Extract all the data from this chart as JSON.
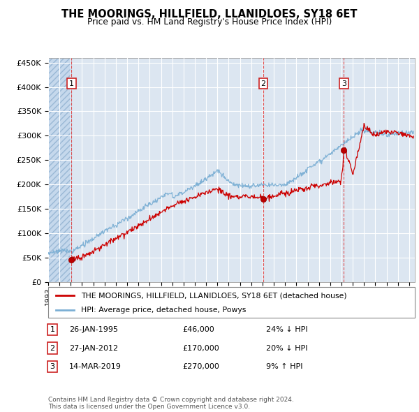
{
  "title": "THE MOORINGS, HILLFIELD, LLANIDLOES, SY18 6ET",
  "subtitle": "Price paid vs. HM Land Registry's House Price Index (HPI)",
  "ylim": [
    0,
    460000
  ],
  "yticks": [
    0,
    50000,
    100000,
    150000,
    200000,
    250000,
    300000,
    350000,
    400000,
    450000
  ],
  "ytick_labels": [
    "£0",
    "£50K",
    "£100K",
    "£150K",
    "£200K",
    "£250K",
    "£300K",
    "£350K",
    "£400K",
    "£450K"
  ],
  "xlim_start": 1993.0,
  "xlim_end": 2025.5,
  "plot_bg_color": "#dce6f1",
  "grid_color": "#ffffff",
  "sale_dates": [
    1995.07,
    2012.07,
    2019.21
  ],
  "sale_prices": [
    46000,
    170000,
    270000
  ],
  "sale_labels": [
    "1",
    "2",
    "3"
  ],
  "red_line_color": "#cc0000",
  "blue_line_color": "#7bafd4",
  "legend_text_red": "THE MOORINGS, HILLFIELD, LLANIDLOES, SY18 6ET (detached house)",
  "legend_text_blue": "HPI: Average price, detached house, Powys",
  "table_rows": [
    {
      "label": "1",
      "date": "26-JAN-1995",
      "price": "£46,000",
      "hpi": "24% ↓ HPI"
    },
    {
      "label": "2",
      "date": "27-JAN-2012",
      "price": "£170,000",
      "hpi": "20% ↓ HPI"
    },
    {
      "label": "3",
      "date": "14-MAR-2019",
      "price": "£270,000",
      "hpi": "9% ↑ HPI"
    }
  ],
  "footer": "Contains HM Land Registry data © Crown copyright and database right 2024.\nThis data is licensed under the Open Government Licence v3.0.",
  "hatch_end_year": 1995.07
}
